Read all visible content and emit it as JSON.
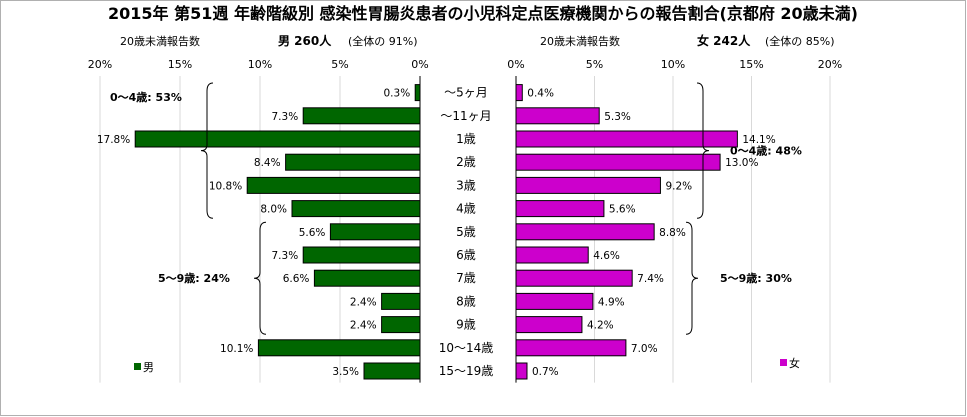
{
  "chart_data": {
    "type": "bar",
    "title": "2015年 第51週 年齢階級別 感染性胃腸炎患者の小児科定点医療機関からの報告割合(京都府 20歳未満)",
    "categories": [
      "～5ヶ月",
      "～11ヶ月",
      "1歳",
      "2歳",
      "3歳",
      "4歳",
      "5歳",
      "6歳",
      "7歳",
      "8歳",
      "9歳",
      "10～14歳",
      "15～19歳"
    ],
    "xlim": [
      0,
      20
    ],
    "ticks": [
      "0%",
      "5%",
      "10%",
      "15%",
      "20%"
    ],
    "left_ticks": [
      "20%",
      "15%",
      "10%",
      "5%",
      "0%"
    ],
    "colors": {
      "male": "#006600",
      "female": "#cc00cc"
    },
    "series": [
      {
        "name": "男",
        "header_left": "20歳未満報告数",
        "header_count": "男 260人",
        "header_pct": "(全体の 91%)",
        "values": [
          0.3,
          7.3,
          17.8,
          8.4,
          10.8,
          8.0,
          5.6,
          7.3,
          6.6,
          2.4,
          2.4,
          10.1,
          3.5
        ],
        "labels": [
          "0.3%",
          "7.3%",
          "17.8%",
          "8.4%",
          "10.8%",
          "8.0%",
          "5.6%",
          "7.3%",
          "6.6%",
          "2.4%",
          "2.4%",
          "10.1%",
          "3.5%"
        ]
      },
      {
        "name": "女",
        "header_left": "20歳未満報告数",
        "header_count": "女 242人",
        "header_pct": "(全体の 85%)",
        "values": [
          0.4,
          5.3,
          14.1,
          13.0,
          9.2,
          5.6,
          8.8,
          4.6,
          7.4,
          4.9,
          4.2,
          7.0,
          0.7
        ],
        "labels": [
          "0.4%",
          "5.3%",
          "14.1%",
          "13.0%",
          "9.2%",
          "5.6%",
          "8.8%",
          "4.6%",
          "7.4%",
          "4.9%",
          "4.2%",
          "7.0%",
          "0.7%"
        ]
      }
    ],
    "annotations": {
      "male_0_4": "0～4歳: 53%",
      "male_5_9": "5～9歳: 24%",
      "female_0_4": "0～4歳: 48%",
      "female_5_9": "5～9歳: 30%"
    }
  }
}
